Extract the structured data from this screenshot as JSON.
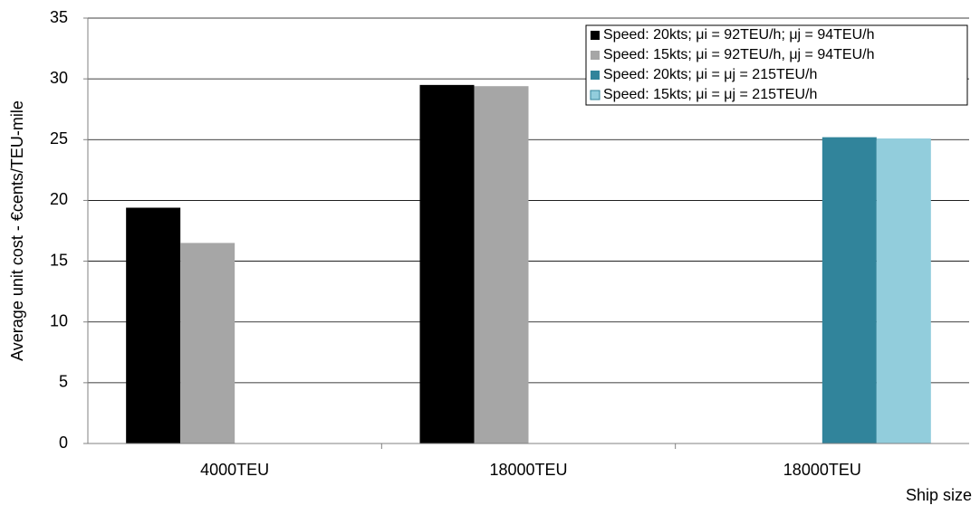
{
  "chart_data": {
    "type": "bar",
    "x_label": "Ship size",
    "y_label": "Average unit cost - €cents/TEU-mile",
    "categories": [
      "4000TEU",
      "18000TEU",
      "18000TEU"
    ],
    "series": [
      {
        "name": "Speed: 20kts; μi = 92TEU/h; μj = 94TEU/h",
        "color": "#000000",
        "values": [
          19.4,
          29.5,
          null
        ]
      },
      {
        "name": "Speed: 15kts; μi = 92TEU/h, μj = 94TEU/h",
        "color": "#a6a6a6",
        "values": [
          16.5,
          29.4,
          null
        ]
      },
      {
        "name": "Speed: 20kts; μi = μj = 215TEU/h",
        "color": "#31849b",
        "values": [
          null,
          null,
          25.2
        ]
      },
      {
        "name": "Speed: 15kts; μi = μj = 215TEU/h",
        "color": "#92cddc",
        "values": [
          null,
          null,
          25.1
        ]
      }
    ],
    "ylim": [
      0,
      35
    ],
    "yticks": [
      0,
      5,
      10,
      15,
      20,
      25,
      30,
      35
    ],
    "grid": true,
    "legend": "top-right"
  }
}
